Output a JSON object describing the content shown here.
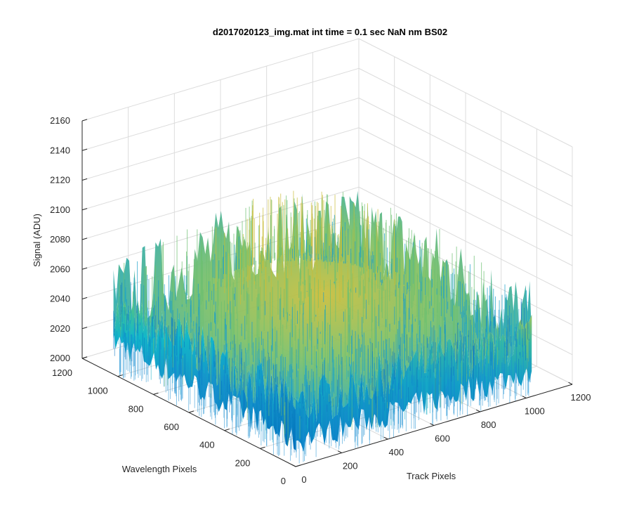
{
  "chart_data": {
    "type": "surface",
    "title": "d2017020123_img.mat int time = 0.1 sec  NaN nm BS02",
    "xlabel": "Track Pixels",
    "ylabel": "Wavelength Pixels",
    "zlabel": "Signal (ADU)",
    "xlim": [
      0,
      1200
    ],
    "ylim": [
      0,
      1200
    ],
    "zlim": [
      2000,
      2160
    ],
    "xticks": [
      "0",
      "200",
      "400",
      "600",
      "800",
      "1000",
      "1200"
    ],
    "yticks": [
      "0",
      "200",
      "400",
      "600",
      "800",
      "1000",
      "1200"
    ],
    "zticks": [
      "2000",
      "2020",
      "2040",
      "2060",
      "2080",
      "2100",
      "2120",
      "2140",
      "2160"
    ],
    "grid": true,
    "colormap": "parula",
    "data_extent": {
      "x": [
        0,
        1024
      ],
      "y": [
        0,
        1024
      ]
    },
    "surface_profile": {
      "baseline_mean": 2040,
      "peak_mean": 2085,
      "peak_region": "upper center (Track 400-800, Wavelength 400-900)",
      "noise_amplitude": 25,
      "max_spike": 2150,
      "min_dip": 2000
    }
  },
  "colors": {
    "low": "#0072bd",
    "mid": "#12b8c9",
    "high": "#d7be32",
    "axis": "#262626",
    "grid": "#dcdcdc"
  }
}
